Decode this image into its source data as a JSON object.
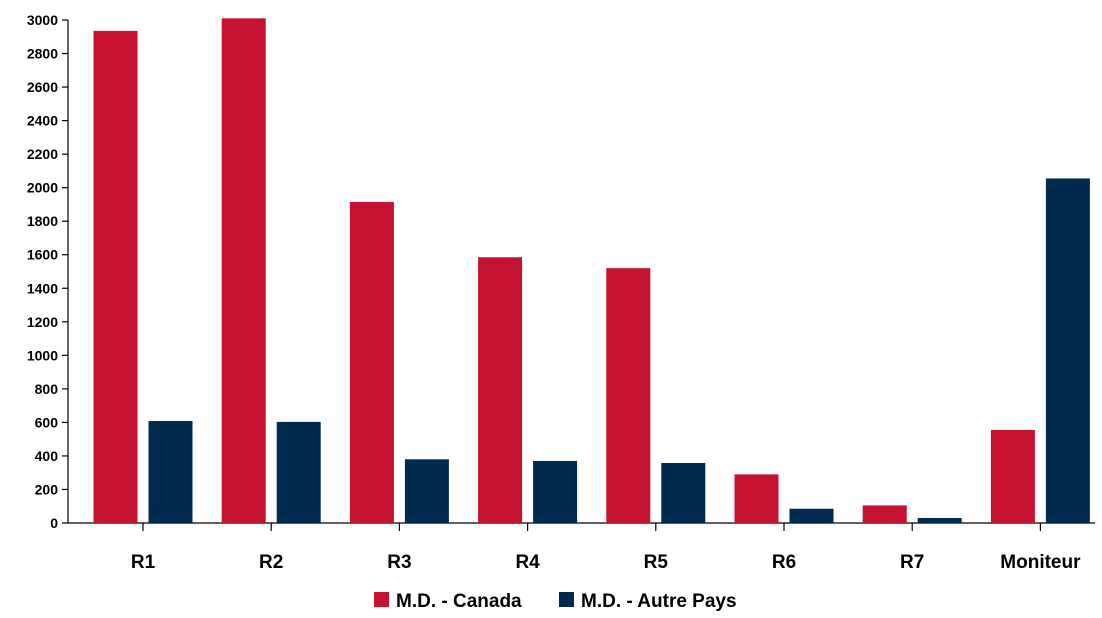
{
  "chart_data": {
    "type": "bar",
    "categories": [
      "R1",
      "R2",
      "R3",
      "R4",
      "R5",
      "R6",
      "R7",
      "Moniteur"
    ],
    "series": [
      {
        "name": "M.D. - Canada",
        "color": "#c41230",
        "values": [
          2935,
          3010,
          1915,
          1585,
          1520,
          290,
          105,
          555
        ]
      },
      {
        "name": "M.D. - Autre Pays",
        "color": "#002b4f",
        "values": [
          608,
          603,
          380,
          370,
          358,
          85,
          30,
          2055
        ]
      }
    ],
    "yticks": [
      0,
      200,
      400,
      600,
      800,
      1000,
      1200,
      1400,
      1600,
      1800,
      2000,
      2200,
      2400,
      2600,
      2800,
      3000
    ],
    "ylim": [
      0,
      3000
    ],
    "title": "",
    "xlabel": "",
    "ylabel": "",
    "grid": false,
    "legend_position": "bottom-center"
  }
}
